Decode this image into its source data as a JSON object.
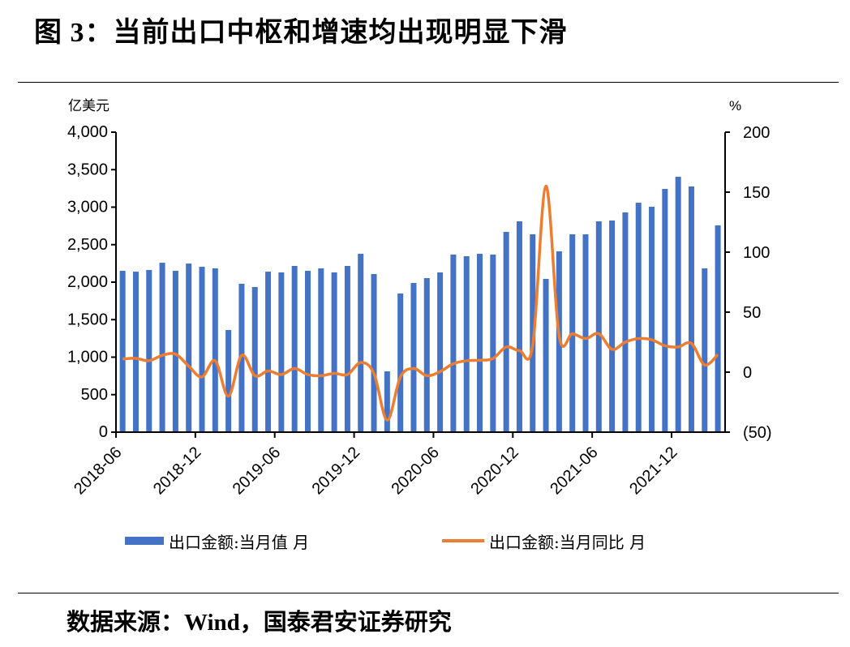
{
  "title": "图 3：当前出口中枢和增速均出现明显下滑",
  "source": "数据来源：Wind，国泰君安证券研究",
  "chart_data": {
    "type": "bar+line",
    "title": "",
    "left_axis": {
      "unit_label": "亿美元",
      "ylim": [
        0,
        4000
      ],
      "ticks": [
        0,
        500,
        1000,
        1500,
        2000,
        2500,
        3000,
        3500,
        4000
      ],
      "tick_labels": [
        "0",
        "500",
        "1,000",
        "1,500",
        "2,000",
        "2,500",
        "3,000",
        "3,500",
        "4,000"
      ]
    },
    "right_axis": {
      "unit_label": "%",
      "ylim": [
        -50,
        200
      ],
      "ticks": [
        -50,
        0,
        50,
        100,
        150,
        200
      ],
      "tick_labels": [
        "(50)",
        "0",
        "50",
        "100",
        "150",
        "200"
      ],
      "negative_label_color": "#e02020"
    },
    "x_tick_labels": [
      "2018-06",
      "2018-12",
      "2019-06",
      "2019-12",
      "2020-06",
      "2020-12",
      "2021-06",
      "2021-12"
    ],
    "categories": [
      "2018-06",
      "2018-07",
      "2018-08",
      "2018-09",
      "2018-10",
      "2018-11",
      "2018-12",
      "2019-01",
      "2019-02",
      "2019-03",
      "2019-04",
      "2019-05",
      "2019-06",
      "2019-07",
      "2019-08",
      "2019-09",
      "2019-10",
      "2019-11",
      "2019-12",
      "2020-01",
      "2020-02",
      "2020-03",
      "2020-04",
      "2020-05",
      "2020-06",
      "2020-07",
      "2020-08",
      "2020-09",
      "2020-10",
      "2020-11",
      "2020-12",
      "2021-01",
      "2021-02",
      "2021-03",
      "2021-04",
      "2021-05",
      "2021-06",
      "2021-07",
      "2021-08",
      "2021-09",
      "2021-10",
      "2021-11",
      "2021-12",
      "2022-01",
      "2022-02",
      "2022-03"
    ],
    "series": [
      {
        "name": "出口金额:当月值 月",
        "type": "bar",
        "axis": "left",
        "color": "#4472c4",
        "values": [
          2151,
          2140,
          2162,
          2259,
          2151,
          2248,
          2205,
          2184,
          1362,
          1978,
          1935,
          2140,
          2130,
          2216,
          2151,
          2184,
          2130,
          2216,
          2378,
          2108,
          811,
          1849,
          1989,
          2054,
          2130,
          2368,
          2346,
          2378,
          2368,
          2670,
          2811,
          2638,
          2043,
          2411,
          2638,
          2638,
          2811,
          2822,
          2930,
          3059,
          3005,
          3243,
          3405,
          3276,
          2184,
          2757
        ]
      },
      {
        "name": "出口金额:当月同比 月",
        "type": "line",
        "axis": "right",
        "color": "#ed7d31",
        "values": [
          11,
          11.5,
          9.5,
          14,
          15,
          5,
          -4,
          9.5,
          -20,
          14,
          -3,
          1,
          -2,
          3,
          -2,
          -3,
          -1,
          -2,
          8,
          -1,
          -40,
          -4,
          3,
          -3,
          0.5,
          7,
          9.5,
          9.9,
          11.4,
          21,
          18,
          22,
          155,
          30,
          32,
          28,
          32,
          19,
          25,
          28,
          27,
          22,
          21,
          24,
          6,
          14.7
        ]
      }
    ],
    "legend_position": "bottom",
    "grid": false
  }
}
